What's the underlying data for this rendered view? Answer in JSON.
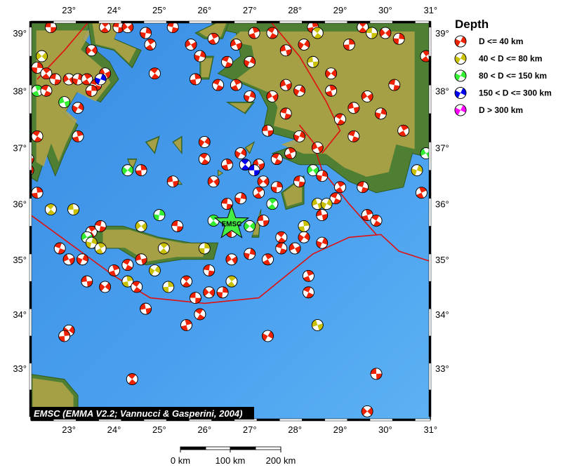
{
  "map": {
    "lon_labels": [
      "23°",
      "24°",
      "25°",
      "26°",
      "27°",
      "28°",
      "29°",
      "30°",
      "31°"
    ],
    "lon_values": [
      23,
      24,
      25,
      26,
      27,
      28,
      29,
      30,
      31
    ],
    "lat_labels": [
      "39°",
      "38°",
      "37°",
      "36°",
      "35°",
      "34°",
      "33°"
    ],
    "lat_values": [
      39,
      38,
      37,
      36,
      35,
      34,
      33
    ],
    "extent": {
      "lon": [
        22.16,
        31.02
      ],
      "lat": [
        32.1,
        39.2
      ]
    },
    "credit": "EMSC (EMMA V2.2; Vannucci & Gasperini, 2004)",
    "marker_label": "EMSC",
    "marker_position": {
      "lon": 26.6,
      "lat": 35.65
    },
    "colors": {
      "sea": "#3f95e6",
      "land": "#b4a449",
      "lowland": "#4f7f33",
      "boundary": "#e01010",
      "marker": "#44ee44"
    }
  },
  "legend": {
    "title": "Depth",
    "items": [
      {
        "label": "D <= 40 km",
        "color": "#ee2200"
      },
      {
        "label": "40 < D <= 80 km",
        "color": "#c8c000"
      },
      {
        "label": "80 < D <= 150 km",
        "color": "#33ee33"
      },
      {
        "label": "150 < D <= 300 km",
        "color": "#0000ee"
      },
      {
        "label": "D > 300 km",
        "color": "#ff00ff"
      }
    ]
  },
  "scale_bar": {
    "labels": [
      "0 km",
      "100 km",
      "200 km"
    ]
  },
  "events": [
    [
      22.6,
      39.1,
      0
    ],
    [
      22.4,
      38.6,
      1
    ],
    [
      22.3,
      38.4,
      0
    ],
    [
      22.5,
      38.3,
      0
    ],
    [
      22.7,
      38.2,
      0
    ],
    [
      23.0,
      38.2,
      0
    ],
    [
      23.2,
      38.2,
      0
    ],
    [
      23.4,
      38.2,
      0
    ],
    [
      23.6,
      38.1,
      0
    ],
    [
      23.8,
      38.3,
      0
    ],
    [
      23.7,
      38.2,
      3
    ],
    [
      22.3,
      38.0,
      2
    ],
    [
      22.5,
      38.0,
      0
    ],
    [
      22.9,
      37.8,
      2
    ],
    [
      23.2,
      37.7,
      0
    ],
    [
      23.2,
      37.2,
      0
    ],
    [
      22.3,
      37.2,
      0
    ],
    [
      22.1,
      36.8,
      0
    ],
    [
      22.1,
      36.6,
      0
    ],
    [
      22.3,
      36.2,
      0
    ],
    [
      22.6,
      35.9,
      1
    ],
    [
      23.1,
      35.9,
      1
    ],
    [
      23.5,
      38.7,
      0
    ],
    [
      23.5,
      38.0,
      0
    ],
    [
      23.8,
      39.1,
      0
    ],
    [
      24.1,
      39.1,
      0
    ],
    [
      24.3,
      39.1,
      0
    ],
    [
      24.7,
      39.0,
      0
    ],
    [
      24.8,
      38.8,
      0
    ],
    [
      25.3,
      39.1,
      0
    ],
    [
      25.7,
      38.8,
      0
    ],
    [
      25.9,
      38.6,
      0
    ],
    [
      26.2,
      38.9,
      0
    ],
    [
      26.5,
      38.5,
      0
    ],
    [
      26.7,
      38.8,
      0
    ],
    [
      27.0,
      38.5,
      0
    ],
    [
      27.1,
      39.0,
      0
    ],
    [
      27.5,
      39.0,
      0
    ],
    [
      27.8,
      38.7,
      0
    ],
    [
      28.2,
      38.8,
      0
    ],
    [
      28.4,
      39.1,
      0
    ],
    [
      28.5,
      39.0,
      1
    ],
    [
      28.4,
      38.5,
      1
    ],
    [
      28.8,
      38.3,
      0
    ],
    [
      29.2,
      38.8,
      0
    ],
    [
      29.5,
      39.1,
      0
    ],
    [
      29.7,
      39.0,
      1
    ],
    [
      30.0,
      39.0,
      0
    ],
    [
      30.3,
      38.9,
      0
    ],
    [
      30.9,
      38.6,
      0
    ],
    [
      30.2,
      38.1,
      0
    ],
    [
      29.6,
      37.9,
      0
    ],
    [
      29.9,
      37.6,
      0
    ],
    [
      30.4,
      37.3,
      0
    ],
    [
      29.3,
      37.2,
      0
    ],
    [
      28.5,
      37.0,
      0
    ],
    [
      28.1,
      37.2,
      0
    ],
    [
      27.9,
      36.9,
      0
    ],
    [
      27.6,
      36.8,
      0
    ],
    [
      27.2,
      36.7,
      0
    ],
    [
      26.8,
      36.9,
      0
    ],
    [
      26.5,
      36.7,
      0
    ],
    [
      26.0,
      36.8,
      0
    ],
    [
      25.3,
      36.4,
      0
    ],
    [
      24.3,
      36.6,
      2
    ],
    [
      24.6,
      36.6,
      0
    ],
    [
      26.9,
      36.7,
      3
    ],
    [
      27.1,
      36.6,
      3
    ],
    [
      27.3,
      36.4,
      0
    ],
    [
      27.6,
      36.3,
      0
    ],
    [
      27.5,
      36.0,
      2
    ],
    [
      28.1,
      36.4,
      0
    ],
    [
      28.4,
      36.6,
      2
    ],
    [
      28.6,
      36.5,
      0
    ],
    [
      29.0,
      36.3,
      0
    ],
    [
      29.5,
      36.3,
      0
    ],
    [
      30.9,
      36.9,
      2
    ],
    [
      30.7,
      36.6,
      1
    ],
    [
      30.8,
      36.2,
      0
    ],
    [
      28.9,
      36.1,
      0
    ],
    [
      28.5,
      36.0,
      1
    ],
    [
      28.7,
      36.0,
      1
    ],
    [
      29.6,
      35.8,
      0
    ],
    [
      29.8,
      35.7,
      0
    ],
    [
      28.6,
      35.8,
      0
    ],
    [
      28.2,
      35.4,
      0
    ],
    [
      28.2,
      35.6,
      1
    ],
    [
      27.7,
      35.4,
      0
    ],
    [
      27.3,
      35.7,
      0
    ],
    [
      27.0,
      35.6,
      2
    ],
    [
      26.6,
      35.5,
      0
    ],
    [
      26.2,
      35.7,
      2
    ],
    [
      25.4,
      35.6,
      0
    ],
    [
      24.6,
      35.6,
      1
    ],
    [
      25.0,
      35.8,
      2
    ],
    [
      23.5,
      35.5,
      0
    ],
    [
      23.7,
      35.6,
      0
    ],
    [
      23.4,
      35.4,
      2
    ],
    [
      23.5,
      35.3,
      1
    ],
    [
      23.7,
      35.2,
      1
    ],
    [
      22.8,
      35.2,
      0
    ],
    [
      23.0,
      35.0,
      0
    ],
    [
      23.3,
      35.0,
      0
    ],
    [
      24.0,
      34.8,
      0
    ],
    [
      24.3,
      34.9,
      0
    ],
    [
      24.6,
      35.0,
      0
    ],
    [
      24.9,
      34.8,
      1
    ],
    [
      24.3,
      34.6,
      1
    ],
    [
      24.5,
      34.5,
      0
    ],
    [
      23.4,
      34.6,
      0
    ],
    [
      23.8,
      34.5,
      0
    ],
    [
      25.2,
      34.5,
      1
    ],
    [
      25.6,
      34.6,
      0
    ],
    [
      25.8,
      34.3,
      0
    ],
    [
      26.1,
      34.4,
      0
    ],
    [
      26.4,
      34.4,
      0
    ],
    [
      26.6,
      34.6,
      1
    ],
    [
      26.1,
      34.8,
      0
    ],
    [
      26.6,
      35.0,
      0
    ],
    [
      27.0,
      35.1,
      0
    ],
    [
      27.4,
      35.0,
      0
    ],
    [
      27.7,
      35.2,
      0
    ],
    [
      28.0,
      35.2,
      0
    ],
    [
      28.6,
      35.3,
      0
    ],
    [
      28.3,
      34.7,
      0
    ],
    [
      28.3,
      34.4,
      0
    ],
    [
      28.5,
      33.8,
      1
    ],
    [
      27.4,
      33.6,
      0
    ],
    [
      25.6,
      33.8,
      0
    ],
    [
      25.9,
      34.0,
      0
    ],
    [
      24.7,
      34.1,
      0
    ],
    [
      23.0,
      33.7,
      0
    ],
    [
      22.9,
      33.6,
      0
    ],
    [
      24.4,
      32.8,
      0
    ],
    [
      29.8,
      32.9,
      0
    ],
    [
      29.6,
      32.2,
      0
    ],
    [
      26.0,
      35.2,
      1
    ],
    [
      25.1,
      35.2,
      1
    ],
    [
      26.5,
      36.0,
      0
    ],
    [
      26.2,
      36.4,
      0
    ],
    [
      26.8,
      36.1,
      0
    ],
    [
      27.2,
      36.2,
      0
    ],
    [
      27.8,
      37.6,
      0
    ],
    [
      27.5,
      37.9,
      0
    ],
    [
      27.0,
      37.9,
      0
    ],
    [
      26.7,
      38.1,
      0
    ],
    [
      26.3,
      38.1,
      0
    ],
    [
      27.8,
      38.1,
      0
    ],
    [
      28.1,
      38.0,
      0
    ],
    [
      28.8,
      38.0,
      0
    ],
    [
      29.0,
      37.5,
      0
    ],
    [
      29.3,
      37.7,
      0
    ],
    [
      26.0,
      37.1,
      0
    ],
    [
      25.8,
      38.2,
      0
    ],
    [
      24.9,
      38.3,
      0
    ],
    [
      27.4,
      37.3,
      0
    ]
  ]
}
